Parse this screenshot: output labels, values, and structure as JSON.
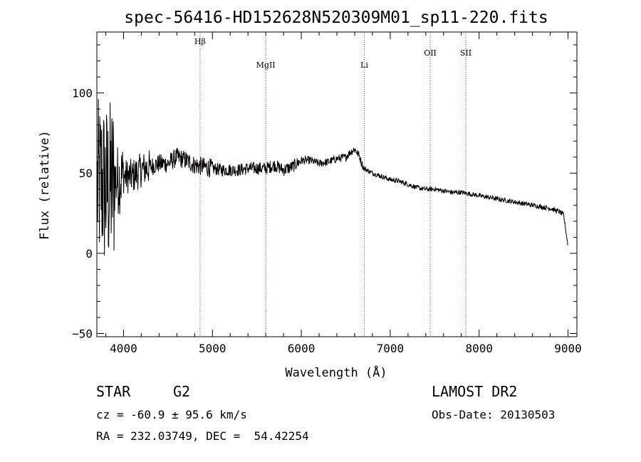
{
  "chart_data": {
    "type": "line",
    "title": "spec-56416-HD152628N520309M01_sp11-220.fits",
    "xlabel": "Wavelength (Å)",
    "ylabel": "Flux (relative)",
    "xlim": [
      3700,
      9100
    ],
    "ylim": [
      -52,
      138
    ],
    "xticks": [
      4000,
      5000,
      6000,
      7000,
      8000,
      9000
    ],
    "yticks": [
      -50,
      0,
      50,
      100
    ],
    "grid": false,
    "line_color": "#000000",
    "marker_color": "#cc2222",
    "lines": [
      {
        "label": "Hβ",
        "x": 4861
      },
      {
        "label": "MgII",
        "x": 5600
      },
      {
        "label": "Li",
        "x": 6708
      },
      {
        "label": "OII",
        "x": 7450
      },
      {
        "label": "SII",
        "x": 7850
      }
    ],
    "series": [
      {
        "x": [
          3700,
          3750,
          3800,
          3850,
          3900,
          4000,
          4100,
          4200,
          4300,
          4400,
          4500,
          4600,
          4700,
          4800,
          4900,
          5000,
          5100,
          5200,
          5300,
          5400,
          5500,
          5600,
          5700,
          5800,
          5900,
          6000,
          6100,
          6200,
          6300,
          6400,
          6500,
          6550,
          6600,
          6650,
          6700,
          6800,
          6900,
          7000,
          7100,
          7200,
          7300,
          7400,
          7500,
          7600,
          7700,
          7800,
          7900,
          8000,
          8100,
          8200,
          8300,
          8400,
          8500,
          8600,
          8700,
          8800,
          8900,
          8950,
          9000
        ],
        "values": [
          40,
          45,
          40,
          42,
          45,
          48,
          48,
          52,
          54,
          56,
          56,
          60,
          58,
          55,
          54,
          53,
          52,
          52,
          52,
          53,
          53,
          53,
          55,
          52,
          54,
          58,
          58,
          56,
          57,
          59,
          60,
          63,
          65,
          61,
          53,
          50,
          48,
          46,
          45,
          43,
          41,
          40,
          40,
          39,
          38,
          38,
          37,
          36,
          35,
          34,
          33,
          32,
          31,
          30,
          29,
          28,
          26,
          24,
          5
        ]
      }
    ]
  },
  "footer": {
    "object_class": "STAR",
    "subclass": "G2",
    "survey": "LAMOST DR2",
    "redshift": "cz = -60.9 ± 95.6 km/s",
    "obs_date": "Obs-Date: 20130503",
    "coords": "RA = 232.03749, DEC =  54.42254"
  }
}
